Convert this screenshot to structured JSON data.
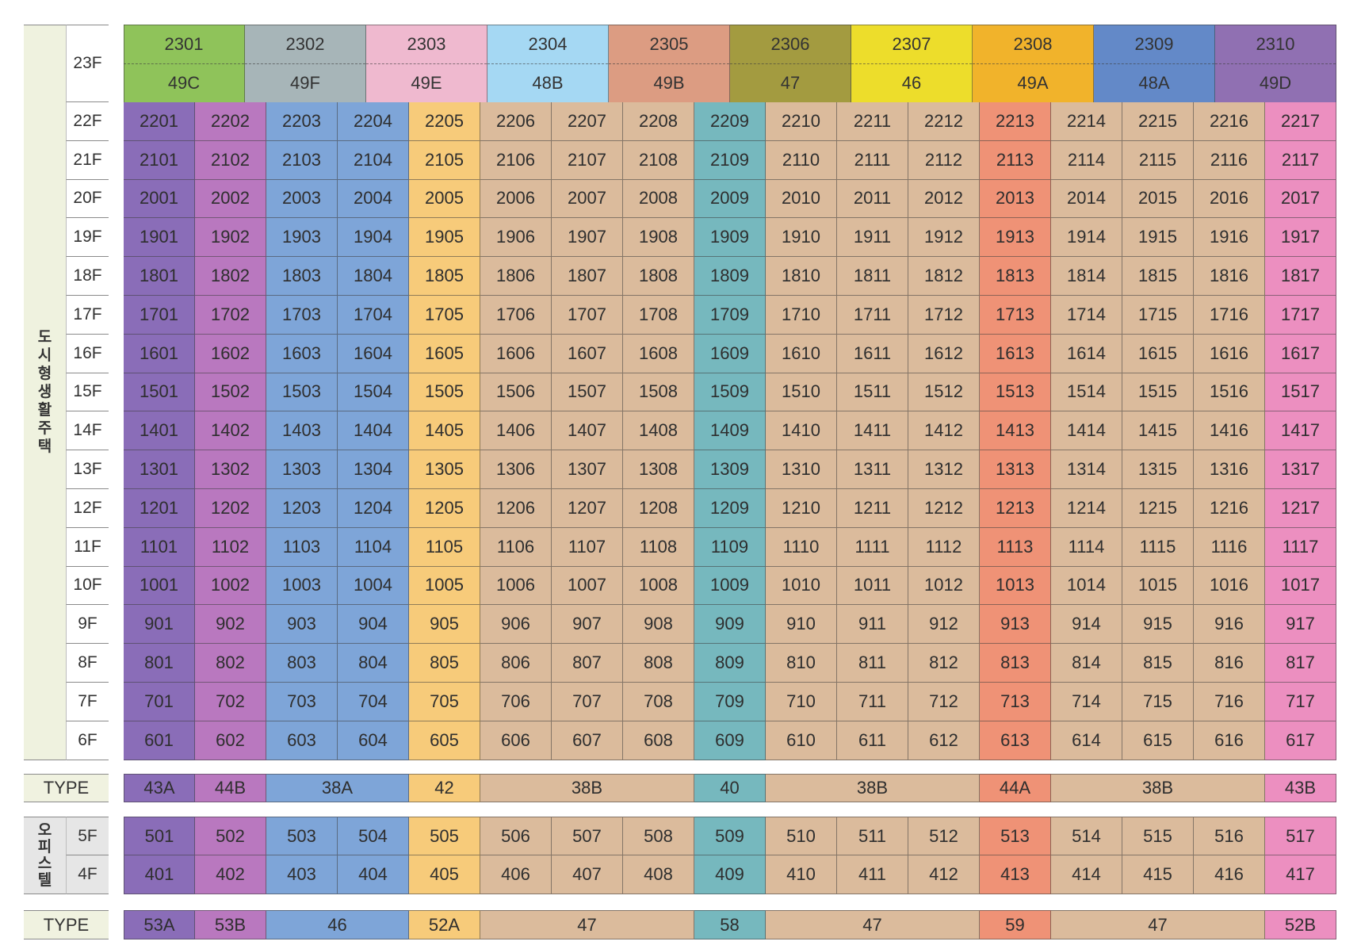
{
  "categories": {
    "residential": "도시형생활주택",
    "officetel": "오피스텔"
  },
  "type_label": "TYPE",
  "colors": {
    "purple": "#8a6db8",
    "magenta": "#b978bf",
    "blue": "#7ea5d8",
    "yellow": "#f7cb7a",
    "tan": "#dbbb9c",
    "teal": "#76b8be",
    "orange": "#ef9276",
    "pink": "#ec8fc0",
    "bg_green": "#eff2df"
  },
  "floor_23": {
    "label": "23F",
    "units": [
      {
        "no": "2301",
        "type": "49C",
        "color": "#8fc35a"
      },
      {
        "no": "2302",
        "type": "49F",
        "color": "#a7b5b8"
      },
      {
        "no": "2303",
        "type": "49E",
        "color": "#efb9cf"
      },
      {
        "no": "2304",
        "type": "48B",
        "color": "#a5d8f3"
      },
      {
        "no": "2305",
        "type": "49B",
        "color": "#dc9c82"
      },
      {
        "no": "2306",
        "type": "47",
        "color": "#a39b40"
      },
      {
        "no": "2307",
        "type": "46",
        "color": "#eddd2b"
      },
      {
        "no": "2308",
        "type": "49A",
        "color": "#f1b32b"
      },
      {
        "no": "2309",
        "type": "48A",
        "color": "#6389c8"
      },
      {
        "no": "2310",
        "type": "49D",
        "color": "#9070b2"
      }
    ]
  },
  "column_colors": [
    "purple",
    "magenta",
    "blue",
    "blue",
    "yellow",
    "tan",
    "tan",
    "tan",
    "teal",
    "tan",
    "tan",
    "tan",
    "orange",
    "tan",
    "tan",
    "tan",
    "pink"
  ],
  "residential_floors": [
    {
      "label": "22F",
      "units": [
        "2201",
        "2202",
        "2203",
        "2204",
        "2205",
        "2206",
        "2207",
        "2208",
        "2209",
        "2210",
        "2211",
        "2212",
        "2213",
        "2214",
        "2215",
        "2216",
        "2217"
      ]
    },
    {
      "label": "21F",
      "units": [
        "2101",
        "2102",
        "2103",
        "2104",
        "2105",
        "2106",
        "2107",
        "2108",
        "2109",
        "2110",
        "2111",
        "2112",
        "2113",
        "2114",
        "2115",
        "2116",
        "2117"
      ]
    },
    {
      "label": "20F",
      "units": [
        "2001",
        "2002",
        "2003",
        "2004",
        "2005",
        "2006",
        "2007",
        "2008",
        "2009",
        "2010",
        "2011",
        "2012",
        "2013",
        "2014",
        "2015",
        "2016",
        "2017"
      ]
    },
    {
      "label": "19F",
      "units": [
        "1901",
        "1902",
        "1903",
        "1904",
        "1905",
        "1906",
        "1907",
        "1908",
        "1909",
        "1910",
        "1911",
        "1912",
        "1913",
        "1914",
        "1915",
        "1916",
        "1917"
      ]
    },
    {
      "label": "18F",
      "units": [
        "1801",
        "1802",
        "1803",
        "1804",
        "1805",
        "1806",
        "1807",
        "1808",
        "1809",
        "1810",
        "1811",
        "1812",
        "1813",
        "1814",
        "1815",
        "1816",
        "1817"
      ]
    },
    {
      "label": "17F",
      "units": [
        "1701",
        "1702",
        "1703",
        "1704",
        "1705",
        "1706",
        "1707",
        "1708",
        "1709",
        "1710",
        "1711",
        "1712",
        "1713",
        "1714",
        "1715",
        "1716",
        "1717"
      ]
    },
    {
      "label": "16F",
      "units": [
        "1601",
        "1602",
        "1603",
        "1604",
        "1605",
        "1606",
        "1607",
        "1608",
        "1609",
        "1610",
        "1611",
        "1612",
        "1613",
        "1614",
        "1615",
        "1616",
        "1617"
      ]
    },
    {
      "label": "15F",
      "units": [
        "1501",
        "1502",
        "1503",
        "1504",
        "1505",
        "1506",
        "1507",
        "1508",
        "1509",
        "1510",
        "1511",
        "1512",
        "1513",
        "1514",
        "1515",
        "1516",
        "1517"
      ]
    },
    {
      "label": "14F",
      "units": [
        "1401",
        "1402",
        "1403",
        "1404",
        "1405",
        "1406",
        "1407",
        "1408",
        "1409",
        "1410",
        "1411",
        "1412",
        "1413",
        "1414",
        "1415",
        "1416",
        "1417"
      ]
    },
    {
      "label": "13F",
      "units": [
        "1301",
        "1302",
        "1303",
        "1304",
        "1305",
        "1306",
        "1307",
        "1308",
        "1309",
        "1310",
        "1311",
        "1312",
        "1313",
        "1314",
        "1315",
        "1316",
        "1317"
      ]
    },
    {
      "label": "12F",
      "units": [
        "1201",
        "1202",
        "1203",
        "1204",
        "1205",
        "1206",
        "1207",
        "1208",
        "1209",
        "1210",
        "1211",
        "1212",
        "1213",
        "1214",
        "1215",
        "1216",
        "1217"
      ]
    },
    {
      "label": "11F",
      "units": [
        "1101",
        "1102",
        "1103",
        "1104",
        "1105",
        "1106",
        "1107",
        "1108",
        "1109",
        "1110",
        "1111",
        "1112",
        "1113",
        "1114",
        "1115",
        "1116",
        "1117"
      ]
    },
    {
      "label": "10F",
      "units": [
        "1001",
        "1002",
        "1003",
        "1004",
        "1005",
        "1006",
        "1007",
        "1008",
        "1009",
        "1010",
        "1011",
        "1012",
        "1013",
        "1014",
        "1015",
        "1016",
        "1017"
      ]
    },
    {
      "label": "9F",
      "units": [
        "901",
        "902",
        "903",
        "904",
        "905",
        "906",
        "907",
        "908",
        "909",
        "910",
        "911",
        "912",
        "913",
        "914",
        "915",
        "916",
        "917"
      ]
    },
    {
      "label": "8F",
      "units": [
        "801",
        "802",
        "803",
        "804",
        "805",
        "806",
        "807",
        "808",
        "809",
        "810",
        "811",
        "812",
        "813",
        "814",
        "815",
        "816",
        "817"
      ]
    },
    {
      "label": "7F",
      "units": [
        "701",
        "702",
        "703",
        "704",
        "705",
        "706",
        "707",
        "708",
        "709",
        "710",
        "711",
        "712",
        "713",
        "714",
        "715",
        "716",
        "717"
      ]
    },
    {
      "label": "6F",
      "units": [
        "601",
        "602",
        "603",
        "604",
        "605",
        "606",
        "607",
        "608",
        "609",
        "610",
        "611",
        "612",
        "613",
        "614",
        "615",
        "616",
        "617"
      ]
    }
  ],
  "residential_types": [
    {
      "label": "43A",
      "span": 1,
      "color": "purple"
    },
    {
      "label": "44B",
      "span": 1,
      "color": "magenta"
    },
    {
      "label": "38A",
      "span": 2,
      "color": "blue"
    },
    {
      "label": "42",
      "span": 1,
      "color": "yellow"
    },
    {
      "label": "38B",
      "span": 3,
      "color": "tan"
    },
    {
      "label": "40",
      "span": 1,
      "color": "teal"
    },
    {
      "label": "38B",
      "span": 3,
      "color": "tan"
    },
    {
      "label": "44A",
      "span": 1,
      "color": "orange"
    },
    {
      "label": "38B",
      "span": 3,
      "color": "tan"
    },
    {
      "label": "43B",
      "span": 1,
      "color": "pink"
    }
  ],
  "officetel_floors": [
    {
      "label": "5F",
      "units": [
        "501",
        "502",
        "503",
        "504",
        "505",
        "506",
        "507",
        "508",
        "509",
        "510",
        "511",
        "512",
        "513",
        "514",
        "515",
        "516",
        "517"
      ]
    },
    {
      "label": "4F",
      "units": [
        "401",
        "402",
        "403",
        "404",
        "405",
        "406",
        "407",
        "408",
        "409",
        "410",
        "411",
        "412",
        "413",
        "414",
        "415",
        "416",
        "417"
      ]
    }
  ],
  "officetel_types": [
    {
      "label": "53A",
      "span": 1,
      "color": "purple"
    },
    {
      "label": "53B",
      "span": 1,
      "color": "magenta"
    },
    {
      "label": "46",
      "span": 2,
      "color": "blue"
    },
    {
      "label": "52A",
      "span": 1,
      "color": "yellow"
    },
    {
      "label": "47",
      "span": 3,
      "color": "tan"
    },
    {
      "label": "58",
      "span": 1,
      "color": "teal"
    },
    {
      "label": "47",
      "span": 3,
      "color": "tan"
    },
    {
      "label": "59",
      "span": 1,
      "color": "orange"
    },
    {
      "label": "47",
      "span": 3,
      "color": "tan"
    },
    {
      "label": "52B",
      "span": 1,
      "color": "pink"
    }
  ]
}
